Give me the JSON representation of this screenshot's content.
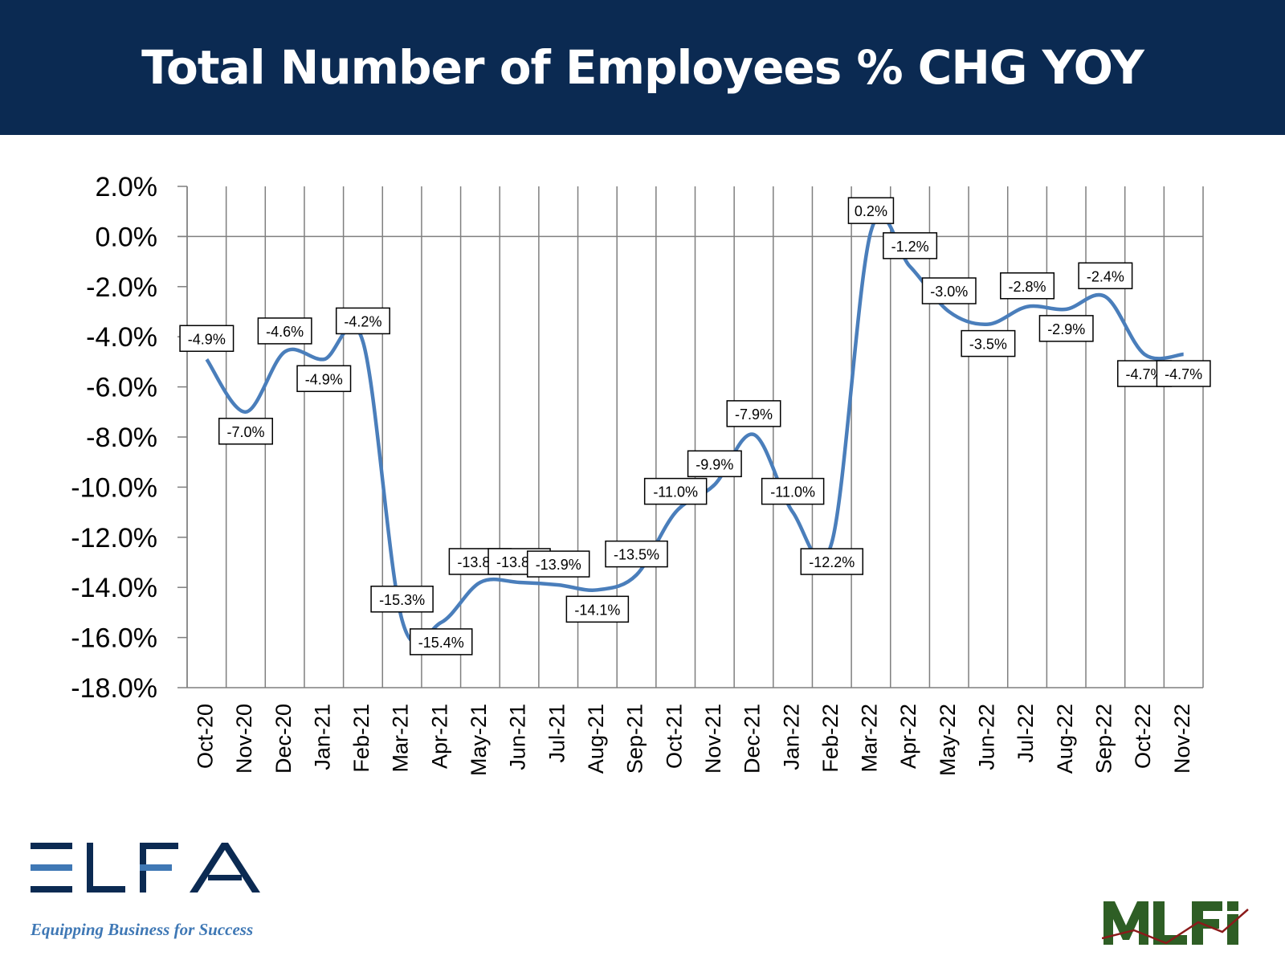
{
  "header": {
    "title": "Total Number of Employees % CHG YOY"
  },
  "colors": {
    "header_bg": "#0b2a52",
    "line": "#4a7ebb",
    "grid": "#7f7f7f",
    "elfa_blue": "#3f78b5",
    "elfa_dark": "#0b2a52",
    "mlfi_green": "#2e5e25"
  },
  "chart_data": {
    "type": "line",
    "title": "",
    "xlabel": "",
    "ylabel": "",
    "ylim": [
      -18,
      2
    ],
    "y_ticks": [
      "2.0%",
      "0.0%",
      "-2.0%",
      "-4.0%",
      "-6.0%",
      "-8.0%",
      "-10.0%",
      "-12.0%",
      "-14.0%",
      "-16.0%",
      "-18.0%"
    ],
    "y_tick_values": [
      2,
      0,
      -2,
      -4,
      -6,
      -8,
      -10,
      -12,
      -14,
      -16,
      -18
    ],
    "categories": [
      "Oct-20",
      "Nov-20",
      "Dec-20",
      "Jan-21",
      "Feb-21",
      "Mar-21",
      "Apr-21",
      "May-21",
      "Jun-21",
      "Jul-21",
      "Aug-21",
      "Sep-21",
      "Oct-21",
      "Nov-21",
      "Dec-21",
      "Jan-22",
      "Feb-22",
      "Mar-22",
      "Apr-22",
      "May-22",
      "Jun-22",
      "Jul-22",
      "Aug-22",
      "Sep-22",
      "Oct-22",
      "Nov-22"
    ],
    "series": [
      {
        "values": [
          -4.9,
          -7.0,
          -4.6,
          -4.9,
          -4.2,
          -15.3,
          -15.4,
          -13.8,
          -13.8,
          -13.9,
          -14.1,
          -13.5,
          -11.0,
          -9.9,
          -7.9,
          -11.0,
          -12.2,
          0.2,
          -1.2,
          -3.0,
          -3.5,
          -2.8,
          -2.9,
          -2.4,
          -4.7,
          -4.7
        ],
        "labels": [
          "-4.9%",
          "-7.0%",
          "-4.6%",
          "-4.9%",
          "-4.2%",
          "-15.3%",
          "-15.4%",
          "-13.8%",
          "-13.8%",
          "-13.9%",
          "-14.1%",
          "-13.5%",
          "-11.0%",
          "-9.9%",
          "-7.9%",
          "-11.0%",
          "-12.2%",
          "0.2%",
          "-1.2%",
          "-3.0%",
          "-3.5%",
          "-2.8%",
          "-2.9%",
          "-2.4%",
          "-4.7%",
          "-4.7%"
        ]
      }
    ],
    "grid": true,
    "legend": "none"
  },
  "logos": {
    "elfa": {
      "name": "ELFA",
      "tagline": "Equipping Business for Success"
    },
    "mlfi": {
      "name": "MLFi"
    }
  }
}
